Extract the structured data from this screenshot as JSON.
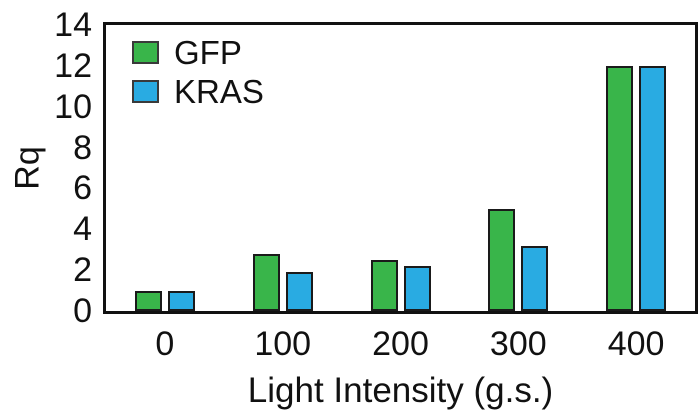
{
  "chart_data": {
    "type": "bar",
    "title": "",
    "categories": [
      "0",
      "100",
      "200",
      "300",
      "400"
    ],
    "series": [
      {
        "name": "GFP",
        "color": "#39B54A",
        "values": [
          1.0,
          2.8,
          2.5,
          5.0,
          12.0
        ]
      },
      {
        "name": "KRAS",
        "color": "#29ABE2",
        "values": [
          1.0,
          1.9,
          2.2,
          3.2,
          12.0
        ]
      }
    ],
    "xlabel": "Light Intensity (g.s.)",
    "ylabel": "Rq",
    "ylim": [
      0,
      14
    ],
    "yticks": [
      0,
      2,
      4,
      6,
      8,
      10,
      12,
      14
    ],
    "grid": false,
    "legend_position": "top-left-inside"
  },
  "colors": {
    "bar_border": "#1a1a1a",
    "axis_frame": "#111111",
    "text": "#111111",
    "background": "#ffffff"
  }
}
